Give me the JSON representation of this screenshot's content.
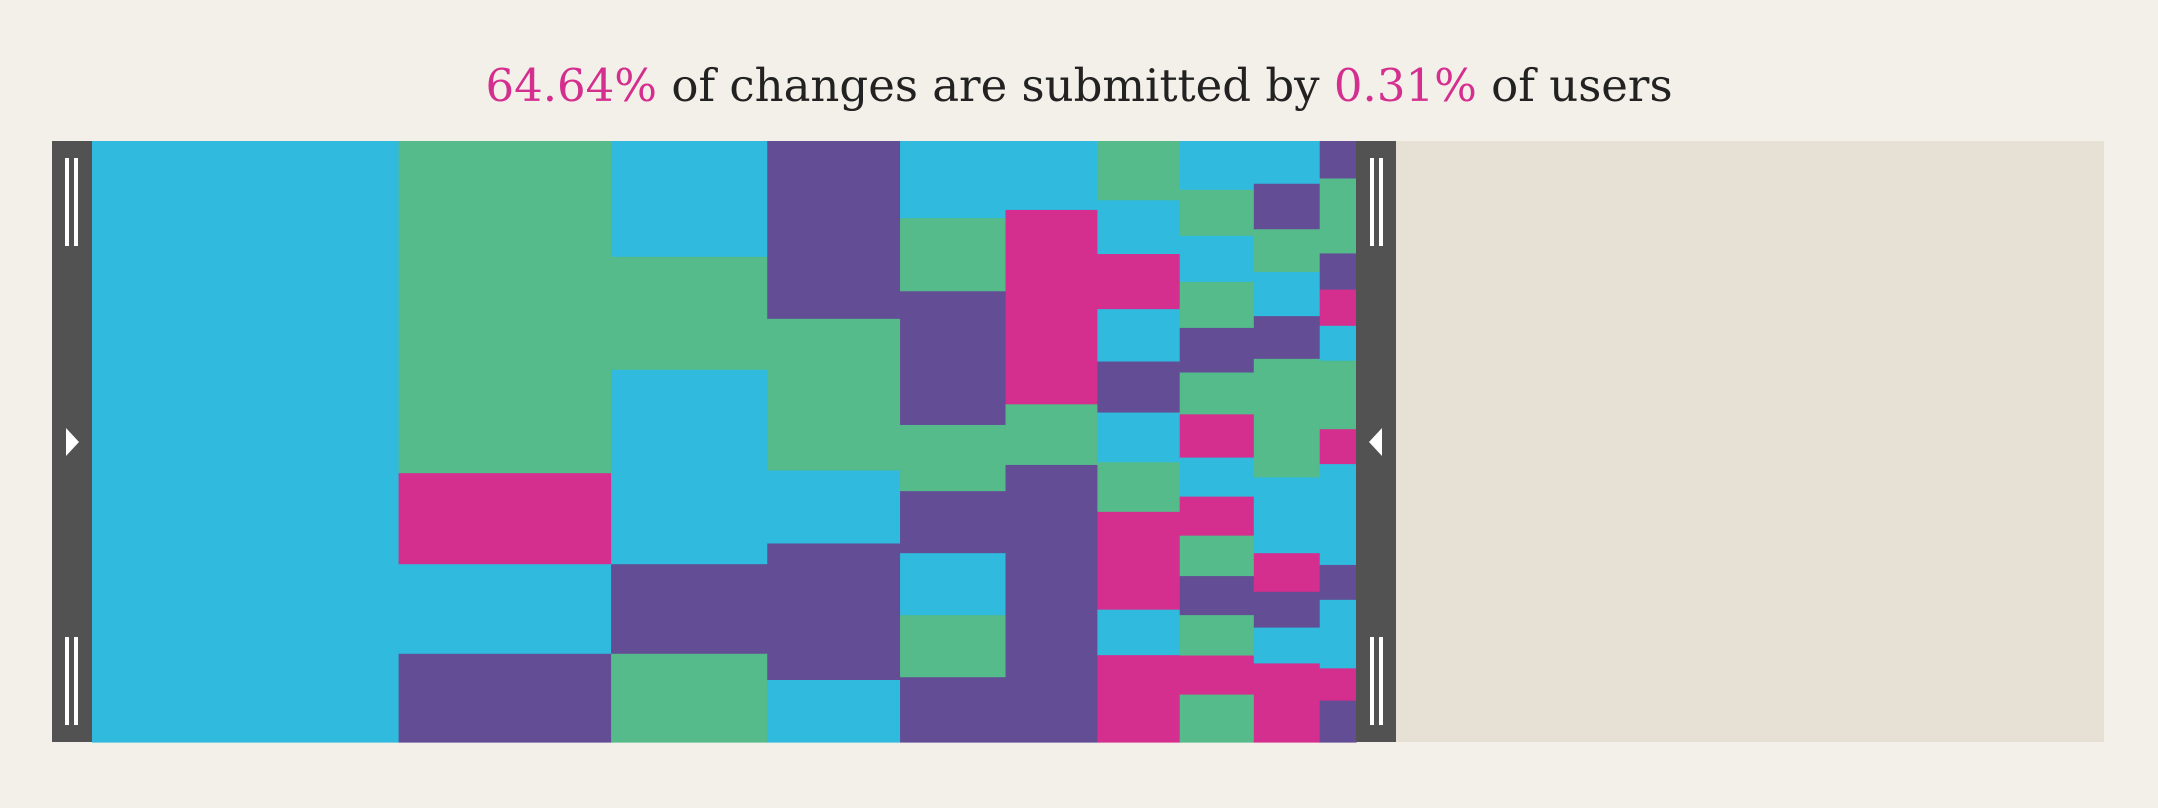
{
  "headline": {
    "changes_percent": "64.64%",
    "text_middle": " of changes are submitted by ",
    "users_percent": "0.31%",
    "text_end": " of users"
  },
  "colors": {
    "background": "#f3f0e9",
    "chart_background": "#e7e0d5",
    "handle": "#525252",
    "blue": "#2fbade",
    "green": "#55bb8b",
    "purple": "#634e95",
    "pink": "#d42e8e",
    "text": "#222222",
    "accent": "#d42e8e"
  },
  "selection": {
    "start_fraction": 0.0,
    "end_fraction": 0.0031,
    "left_handle_icon": "triangle-right-icon",
    "right_handle_icon": "triangle-left-icon"
  },
  "chart_data": {
    "type": "treemap",
    "title": "64.64% of changes are submitted by 0.31% of users",
    "highlighted_share_of_changes": 64.64,
    "highlighted_share_of_users": 0.31,
    "columns": [
      {
        "width": 0.2433,
        "cells": [
          [
            "blue",
            1.0
          ]
        ]
      },
      {
        "width": 0.1686,
        "cells": [
          [
            "green",
            0.5528
          ],
          [
            "pink",
            0.1514
          ],
          [
            "blue",
            0.1491
          ],
          [
            "purple",
            0.1468
          ]
        ]
      },
      {
        "width": 0.1239,
        "cells": [
          [
            "blue",
            0.1927
          ],
          [
            "green",
            0.1881
          ],
          [
            "blue",
            0.3234
          ],
          [
            "purple",
            0.1491
          ],
          [
            "green",
            0.1468
          ]
        ]
      },
      {
        "width": 0.1054,
        "cells": [
          [
            "purple",
            0.2959
          ],
          [
            "green",
            0.2523
          ],
          [
            "blue",
            0.1216
          ],
          [
            "purple",
            0.2271
          ],
          [
            "blue",
            0.1032
          ]
        ]
      },
      {
        "width": 0.0837,
        "cells": [
          [
            "blue",
            0.1284
          ],
          [
            "green",
            0.1216
          ],
          [
            "purple",
            0.2225
          ],
          [
            "green",
            0.1101
          ],
          [
            "purple",
            0.1032
          ],
          [
            "blue",
            0.1032
          ],
          [
            "green",
            0.1032
          ],
          [
            "purple",
            0.1078
          ]
        ]
      },
      {
        "width": 0.0729,
        "cells": [
          [
            "blue",
            0.1147
          ],
          [
            "pink",
            0.3234
          ],
          [
            "green",
            0.1009
          ],
          [
            "purple",
            0.461
          ]
        ]
      },
      {
        "width": 0.0653,
        "cells": [
          [
            "green",
            0.0986
          ],
          [
            "blue",
            0.0895
          ],
          [
            "pink",
            0.0917
          ],
          [
            "blue",
            0.0872
          ],
          [
            "purple",
            0.0849
          ],
          [
            "blue",
            0.0826
          ],
          [
            "green",
            0.0826
          ],
          [
            "pink",
            0.1628
          ],
          [
            "blue",
            0.0757
          ],
          [
            "pink",
            0.1445
          ]
        ]
      },
      {
        "width": 0.0588,
        "cells": [
          [
            "blue",
            0.0803
          ],
          [
            "green",
            0.0757
          ],
          [
            "blue",
            0.0757
          ],
          [
            "green",
            0.0757
          ],
          [
            "purple",
            0.0734
          ],
          [
            "green",
            0.0688
          ],
          [
            "pink",
            0.0711
          ],
          [
            "blue",
            0.0642
          ],
          [
            "pink",
            0.0642
          ],
          [
            "green",
            0.0665
          ],
          [
            "purple",
            0.0642
          ],
          [
            "green",
            0.0665
          ],
          [
            "pink",
            0.0642
          ],
          [
            "green",
            0.078
          ]
        ]
      },
      {
        "width": 0.0523,
        "cells": [
          [
            "blue",
            0.0711
          ],
          [
            "purple",
            0.0757
          ],
          [
            "green",
            0.0711
          ],
          [
            "blue",
            0.0734
          ],
          [
            "purple",
            0.0711
          ],
          [
            "green",
            0.1972
          ],
          [
            "blue",
            0.1261
          ],
          [
            "pink",
            0.0642
          ],
          [
            "purple",
            0.0596
          ],
          [
            "blue",
            0.0596
          ],
          [
            "pink",
            0.1307
          ]
        ]
      },
      {
        "width": 0.0288,
        "cells": [
          [
            "purple",
            0.0665
          ],
          [
            "green",
            0.133
          ],
          [
            "purple",
            0.0642
          ],
          [
            "pink",
            0.0642
          ],
          [
            "blue",
            0.0619
          ],
          [
            "green",
            0.1216
          ],
          [
            "pink",
            0.0619
          ],
          [
            "blue",
            0.1789
          ],
          [
            "purple",
            0.0619
          ],
          [
            "blue",
            0.1216
          ],
          [
            "pink",
            0.0573
          ],
          [
            "purple",
            0.0734
          ]
        ]
      }
    ]
  }
}
